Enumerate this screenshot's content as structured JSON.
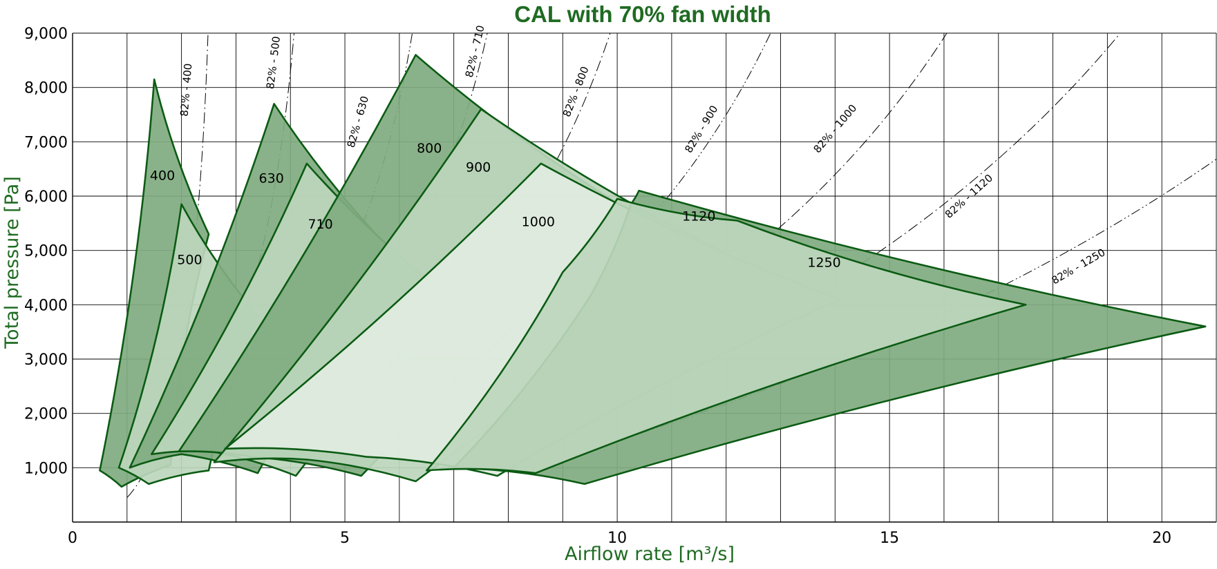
{
  "colors": {
    "accent": "#1f6b22",
    "outline": "#0b5b13",
    "fill_dark": "#80ab80",
    "fill_mid": "#bcd6bc",
    "fill_light": "#dfecdf",
    "grid": "#000000"
  },
  "chart_data": {
    "type": "area",
    "title": "CAL with 70% fan width",
    "xlabel": "Airflow rate [m³/s]",
    "ylabel": "Total pressure [Pa]",
    "xlim": [
      0,
      21
    ],
    "ylim": [
      0,
      9000
    ],
    "x_ticks": [
      {
        "value": 0,
        "label": "0"
      },
      {
        "value": 5,
        "label": "5"
      },
      {
        "value": 10,
        "label": "10"
      },
      {
        "value": 15,
        "label": "15"
      },
      {
        "value": 20,
        "label": "20"
      }
    ],
    "y_ticks": [
      {
        "value": 1000,
        "label": "1,000"
      },
      {
        "value": 2000,
        "label": "2,000"
      },
      {
        "value": 3000,
        "label": "3,000"
      },
      {
        "value": 4000,
        "label": "4,000"
      },
      {
        "value": 5000,
        "label": "5,000"
      },
      {
        "value": 6000,
        "label": "6,000"
      },
      {
        "value": 7000,
        "label": "7,000"
      },
      {
        "value": 8000,
        "label": "8,000"
      },
      {
        "value": 9000,
        "label": "9,000"
      }
    ],
    "grid": true,
    "grid_step": {
      "x": 1,
      "y": 1000
    },
    "series": [
      {
        "name": "400",
        "fill": "dark",
        "label_at": [
          1.65,
          6300
        ],
        "points": [
          [
            0.5,
            950
          ],
          [
            1.5,
            8150
          ],
          [
            2.5,
            5300
          ],
          [
            1.8,
            1050
          ],
          [
            0.9,
            650
          ]
        ]
      },
      {
        "name": "500",
        "fill": "mid",
        "label_at": [
          2.15,
          4750
        ],
        "points": [
          [
            0.85,
            1000
          ],
          [
            2.0,
            5850
          ],
          [
            3.4,
            3800
          ],
          [
            2.5,
            950
          ],
          [
            1.4,
            700
          ]
        ]
      },
      {
        "name": "630",
        "fill": "dark",
        "label_at": [
          3.65,
          6250
        ],
        "points": [
          [
            1.05,
            1000
          ],
          [
            3.7,
            7700
          ],
          [
            6.0,
            4850
          ],
          [
            3.4,
            900
          ],
          [
            2.0,
            1250
          ]
        ]
      },
      {
        "name": "710",
        "fill": "mid",
        "label_at": [
          4.55,
          5400
        ],
        "points": [
          [
            1.45,
            1250
          ],
          [
            4.3,
            6600
          ],
          [
            7.05,
            4050
          ],
          [
            4.1,
            850
          ],
          [
            2.55,
            1300
          ]
        ]
      },
      {
        "name": "800",
        "fill": "dark",
        "label_at": [
          6.55,
          6800
        ],
        "points": [
          [
            1.95,
            1300
          ],
          [
            6.3,
            8600
          ],
          [
            10.45,
            5600
          ],
          [
            5.3,
            850
          ],
          [
            3.3,
            1200
          ]
        ]
      },
      {
        "name": "900",
        "fill": "mid",
        "label_at": [
          7.45,
          6450
        ],
        "points": [
          [
            2.6,
            1100
          ],
          [
            7.5,
            7600
          ],
          [
            12.4,
            4750
          ],
          [
            6.3,
            750
          ],
          [
            4.3,
            1150
          ]
        ]
      },
      {
        "name": "1000",
        "fill": "light",
        "label_at": [
          8.55,
          5450
        ],
        "points": [
          [
            2.8,
            1350
          ],
          [
            8.6,
            6600
          ],
          [
            14.1,
            4100
          ],
          [
            7.8,
            850
          ],
          [
            5.4,
            1200
          ]
        ]
      },
      {
        "name": "1120",
        "fill": "dark",
        "label_at": [
          11.5,
          5550
        ],
        "points": [
          [
            10.25,
            5850
          ],
          [
            10.4,
            6100
          ],
          [
            20.8,
            3600
          ],
          [
            9.4,
            700
          ],
          [
            7.0,
            1000
          ],
          [
            9.5,
            4150
          ]
        ]
      },
      {
        "name": "1250",
        "fill": "mid",
        "label_at": [
          13.8,
          4700
        ],
        "points": [
          [
            10.0,
            5950
          ],
          [
            12.2,
            5550
          ],
          [
            17.5,
            4000
          ],
          [
            8.5,
            900
          ],
          [
            6.5,
            950
          ],
          [
            9.0,
            4600
          ]
        ]
      }
    ],
    "annotations": [
      {
        "label": "82% - 400",
        "from": [
          1.0,
          450
        ],
        "to": [
          2.5,
          9400
        ],
        "bend": 0.35,
        "style": "dash-dot",
        "label_at": [
          2.15,
          7950
        ]
      },
      {
        "label": "82% - 500",
        "from": [
          1.5,
          1000
        ],
        "to": [
          4.1,
          9400
        ],
        "bend": 0.3,
        "style": "dash-dot",
        "label_at": [
          3.75,
          8450
        ]
      },
      {
        "label": "82% - 630",
        "from": [
          2.1,
          1400
        ],
        "to": [
          6.3,
          9400
        ],
        "bend": 0.28,
        "style": "dash-dot-dot",
        "label_at": [
          5.3,
          7350
        ]
      },
      {
        "label": "82% - 710",
        "from": [
          2.8,
          1400
        ],
        "to": [
          7.7,
          9400
        ],
        "bend": 0.25,
        "style": "dash-dot",
        "label_at": [
          7.45,
          8650
        ]
      },
      {
        "label": "82% - 800",
        "from": [
          3.7,
          1500
        ],
        "to": [
          10.0,
          9400
        ],
        "bend": 0.22,
        "style": "dash-dot",
        "label_at": [
          9.3,
          7900
        ]
      },
      {
        "label": "82% - 900",
        "from": [
          4.8,
          1500
        ],
        "to": [
          13.0,
          9400
        ],
        "bend": 0.2,
        "style": "dash-dot-dot",
        "label_at": [
          11.6,
          7200
        ]
      },
      {
        "label": "82% - 1000",
        "from": [
          6.2,
          1500
        ],
        "to": [
          16.3,
          9400
        ],
        "bend": 0.18,
        "style": "dash-dot",
        "label_at": [
          14.05,
          7200
        ]
      },
      {
        "label": "82% - 1120",
        "from": [
          7.8,
          1450
        ],
        "to": [
          19.4,
          9200
        ],
        "bend": 0.15,
        "style": "dash-dot",
        "label_at": [
          16.5,
          5950
        ]
      },
      {
        "label": "82% - 1250",
        "from": [
          9.7,
          1400
        ],
        "to": [
          21.1,
          6750
        ],
        "bend": 0.1,
        "style": "dash-dot-dot",
        "label_at": [
          18.5,
          4650
        ]
      }
    ]
  }
}
